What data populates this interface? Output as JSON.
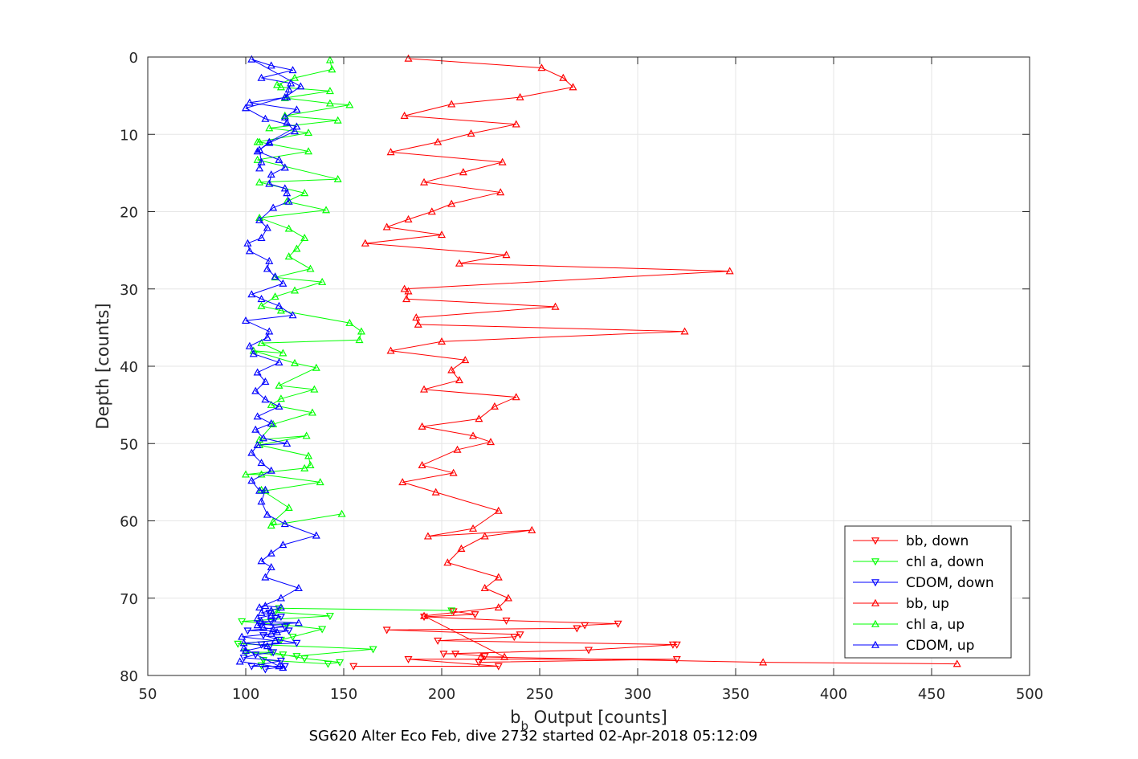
{
  "chart_data": {
    "type": "line",
    "title": "SG620 Alter Eco Feb, dive 2732 started 02-Apr-2018 05:12:09",
    "xlabel_main": "b",
    "xlabel_sub": "b",
    "xlabel_rest": " Output [counts]",
    "ylabel": "Depth [counts]",
    "xlim": [
      50,
      500
    ],
    "ylim": [
      0,
      80
    ],
    "y_reversed": true,
    "xticks": [
      50,
      100,
      150,
      200,
      250,
      300,
      350,
      400,
      450,
      500
    ],
    "yticks": [
      0,
      10,
      20,
      30,
      40,
      50,
      60,
      70,
      80
    ],
    "grid": true,
    "legend_position": "bottom-right",
    "series": [
      {
        "name": "bb, down",
        "color": "#ff0000",
        "marker": "triangle-down",
        "x": [
          155,
          229,
          183,
          320,
          219,
          222,
          207,
          201,
          275,
          320,
          318,
          198,
          237,
          240,
          172,
          269,
          273,
          290,
          233,
          191,
          217,
          206
        ],
        "y": [
          78.8,
          78.8,
          77.9,
          77.9,
          78.3,
          77.5,
          77.2,
          77.2,
          76.7,
          76.0,
          76.0,
          75.5,
          75.0,
          74.7,
          74.1,
          73.9,
          73.5,
          73.3,
          72.9,
          72.4,
          72.1,
          71.7
        ]
      },
      {
        "name": "chl a, down",
        "color": "#00ff00",
        "marker": "triangle-down",
        "x": [
          108,
          109,
          142,
          148,
          130,
          119,
          113,
          100,
          126,
          165,
          96,
          118,
          124,
          139,
          121,
          98,
          143,
          115,
          117,
          205
        ],
        "y": [
          78.7,
          78.0,
          78.5,
          78.3,
          77.8,
          77.3,
          77.0,
          77.0,
          77.5,
          76.6,
          75.9,
          75.4,
          75.0,
          74.0,
          73.5,
          73.0,
          72.3,
          71.8,
          71.3,
          71.6
        ]
      },
      {
        "name": "CDOM, down",
        "color": "#0000ff",
        "marker": "triangle-down",
        "x": [
          110,
          120,
          103,
          118,
          99,
          105,
          114,
          112,
          108,
          126,
          117,
          109,
          122,
          101,
          120,
          107,
          113,
          115,
          118,
          112
        ],
        "y": [
          79.2,
          78.8,
          78.8,
          78.1,
          77.7,
          77.3,
          77.0,
          76.3,
          76.0,
          75.8,
          75.4,
          74.8,
          74.2,
          74.2,
          73.7,
          73.3,
          73.0,
          72.6,
          72.4,
          71.9
        ]
      },
      {
        "name": "bb, up",
        "color": "#ff0000",
        "marker": "triangle-up",
        "x": [
          463,
          364,
          220,
          232,
          191,
          229,
          234,
          222,
          229,
          203,
          210,
          222,
          246,
          193,
          216,
          229,
          197,
          180,
          206,
          190,
          208,
          225,
          216,
          190,
          219,
          227,
          238,
          191,
          209,
          205,
          212,
          174,
          200,
          324,
          188,
          187,
          258,
          182,
          183,
          181,
          347,
          209,
          233,
          161,
          200,
          172,
          183,
          195,
          205,
          230,
          191,
          211,
          231,
          174,
          198,
          215,
          238,
          181,
          205,
          240,
          267,
          262,
          251,
          183
        ],
        "y": [
          78.5,
          78.3,
          77.6,
          77.6,
          72.3,
          71.2,
          70.0,
          68.7,
          67.3,
          65.4,
          63.6,
          62.0,
          61.2,
          62.0,
          61.0,
          58.7,
          56.3,
          55.0,
          53.8,
          52.8,
          50.8,
          49.8,
          49.0,
          47.8,
          46.8,
          45.2,
          44.0,
          43.0,
          41.8,
          40.5,
          39.2,
          38.0,
          36.8,
          35.5,
          34.6,
          33.7,
          32.3,
          31.3,
          30.3,
          30.0,
          27.7,
          26.7,
          25.6,
          24.1,
          23.0,
          22.0,
          21.0,
          20.0,
          19.0,
          17.5,
          16.2,
          14.9,
          13.6,
          12.3,
          11.0,
          9.9,
          8.7,
          7.6,
          6.1,
          5.2,
          3.9,
          2.7,
          1.4,
          0.2
        ]
      },
      {
        "name": "chl a, up",
        "color": "#00ff00",
        "marker": "triangle-up",
        "x": [
          149,
          113,
          114,
          122,
          108,
          110,
          138,
          108,
          100,
          130,
          133,
          132,
          107,
          131,
          107,
          114,
          134,
          113,
          118,
          135,
          117,
          136,
          125,
          104,
          119,
          108,
          158,
          159,
          153,
          118,
          108,
          115,
          125,
          139,
          115,
          133,
          122,
          126,
          130,
          122,
          107,
          141,
          121,
          130,
          107,
          147,
          106,
          132,
          107,
          106,
          132,
          112,
          147,
          120,
          153,
          143,
          120,
          143,
          118,
          116,
          125,
          144,
          143
        ],
        "y": [
          59.1,
          60.6,
          60.1,
          58.3,
          56.0,
          56.1,
          55.0,
          54.0,
          54.0,
          53.2,
          52.8,
          51.6,
          50.2,
          49.0,
          49.5,
          47.5,
          46.0,
          45.0,
          44.2,
          43.0,
          42.5,
          40.2,
          39.6,
          38.0,
          38.3,
          37.0,
          36.6,
          35.5,
          34.4,
          32.8,
          32.2,
          31.0,
          30.2,
          29.1,
          28.5,
          27.4,
          25.8,
          24.8,
          23.4,
          22.2,
          20.8,
          19.8,
          18.7,
          17.6,
          16.2,
          15.8,
          13.3,
          12.2,
          11.0,
          11.0,
          9.8,
          9.2,
          8.2,
          7.6,
          6.2,
          6.0,
          5.3,
          4.4,
          3.9,
          3.6,
          2.7,
          1.6,
          0.4
        ]
      },
      {
        "name": "CDOM, up",
        "color": "#0000ff",
        "marker": "triangle-up",
        "x": [
          97,
          119,
          117,
          99,
          100,
          111,
          99,
          115,
          98,
          113,
          116,
          114,
          109,
          106,
          127,
          108,
          106,
          113,
          108,
          113,
          118,
          110,
          107,
          118,
          127,
          110,
          113,
          108,
          113,
          119,
          136,
          120,
          111,
          108,
          110,
          107,
          103,
          113,
          108,
          103,
          106,
          121,
          109,
          105,
          113,
          106,
          117,
          110,
          105,
          110,
          106,
          117,
          104,
          102,
          111,
          112,
          100,
          124,
          117,
          108,
          103,
          119,
          115,
          111,
          112,
          102,
          101,
          108,
          111,
          107,
          114,
          122,
          121,
          120,
          112,
          113,
          120,
          117,
          106,
          112,
          125,
          121,
          120,
          126,
          102,
          121,
          122,
          123,
          108,
          124,
          113,
          103,
          128,
          120,
          100,
          110,
          126,
          112,
          107,
          108,
          107
        ],
        "y": [
          78.2,
          79.0,
          78.8,
          76.5,
          76.8,
          76.2,
          75.8,
          75.5,
          75.0,
          74.6,
          74.4,
          74.0,
          73.8,
          73.5,
          73.2,
          73.0,
          72.6,
          72.2,
          71.9,
          71.6,
          71.2,
          71.0,
          71.2,
          70.0,
          68.7,
          67.3,
          66.0,
          65.2,
          64.2,
          63.1,
          61.9,
          60.4,
          59.2,
          57.5,
          56.0,
          56.1,
          54.8,
          53.5,
          52.5,
          51.2,
          50.2,
          50.0,
          49.3,
          48.2,
          47.4,
          46.5,
          45.2,
          44.3,
          43.2,
          42.0,
          40.8,
          39.5,
          38.4,
          37.4,
          36.3,
          35.5,
          34.1,
          33.4,
          32.2,
          31.3,
          30.7,
          29.3,
          28.4,
          27.4,
          26.4,
          25.1,
          24.1,
          23.4,
          22.1,
          21.1,
          19.5,
          18.7,
          17.6,
          17.0,
          16.4,
          15.2,
          14.3,
          13.3,
          12.2,
          11.1,
          9.6,
          8.5,
          7.8,
          6.8,
          5.9,
          5.2,
          4.2,
          3.4,
          2.7,
          1.7,
          1.1,
          0.3,
          3.8,
          5.2,
          6.6,
          8.0,
          9.0,
          11.0,
          12.0,
          13.6,
          14.4
        ]
      }
    ]
  }
}
